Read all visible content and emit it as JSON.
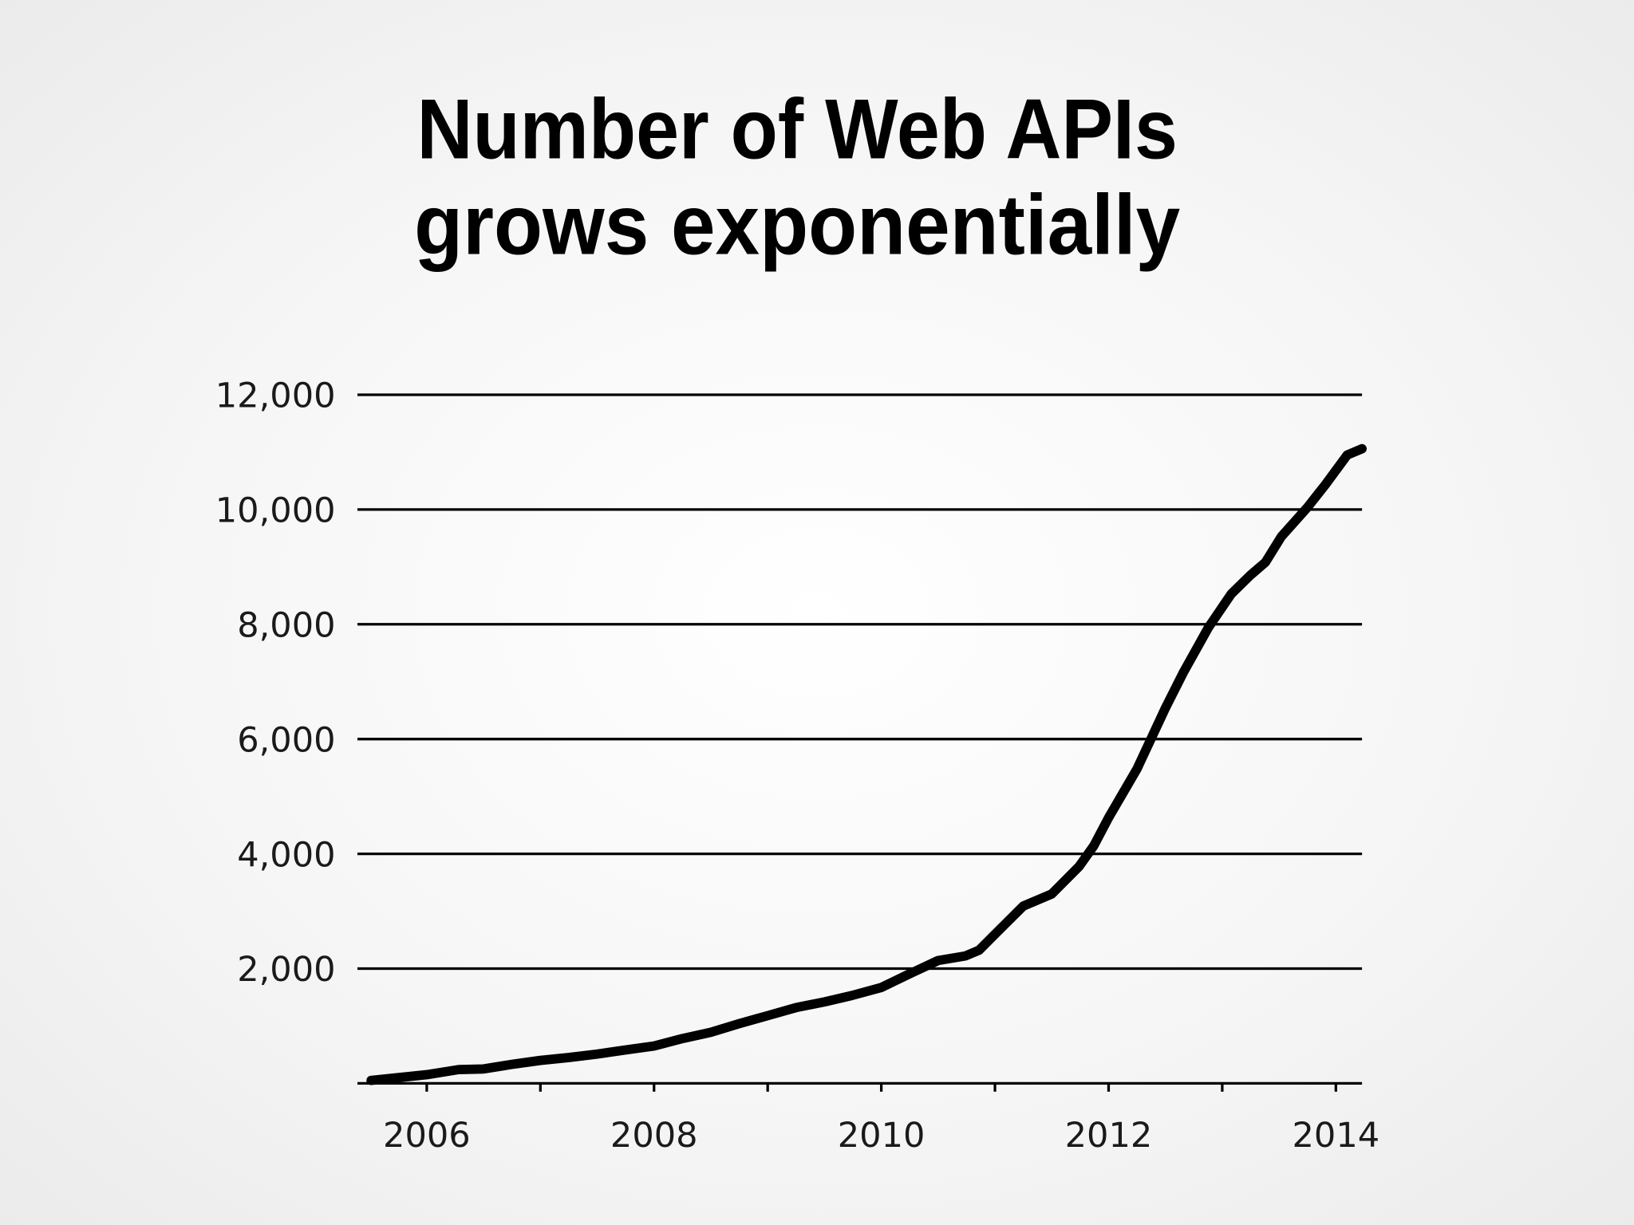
{
  "chart_data": {
    "type": "line",
    "title": [
      "Number of Web APIs",
      "grows exponentially"
    ],
    "x": [
      2005.51,
      2006.0,
      2006.28,
      2006.5,
      2006.75,
      2007.0,
      2007.25,
      2007.5,
      2007.74,
      2008.0,
      2008.25,
      2008.5,
      2008.75,
      2009.0,
      2009.25,
      2009.5,
      2009.74,
      2010.0,
      2010.25,
      2010.5,
      2010.74,
      2010.86,
      2011.0,
      2011.25,
      2011.5,
      2011.74,
      2011.87,
      2012.0,
      2012.25,
      2012.5,
      2012.66,
      2012.88,
      2013.08,
      2013.25,
      2013.38,
      2013.52,
      2013.75,
      2013.91,
      2014.1,
      2014.23
    ],
    "values": [
      50,
      150,
      240,
      250,
      330,
      400,
      450,
      510,
      580,
      650,
      780,
      890,
      1040,
      1180,
      1320,
      1420,
      1530,
      1670,
      1910,
      2140,
      2220,
      2320,
      2600,
      3090,
      3300,
      3780,
      4140,
      4630,
      5480,
      6540,
      7170,
      7950,
      8530,
      8860,
      9080,
      9530,
      10040,
      10440,
      10950,
      11060
    ],
    "color": "#000000",
    "xlim": [
      2005.39,
      2014.23
    ],
    "xticks": [
      2006,
      2008,
      2010,
      2012,
      2014
    ],
    "minor_xticks": [
      2007,
      2009,
      2011,
      2013
    ],
    "ylim": [
      0,
      12000
    ],
    "yticks": [
      {
        "value": 2000,
        "label": "2,000"
      },
      {
        "value": 4000,
        "label": "4,000"
      },
      {
        "value": 6000,
        "label": "6,000"
      },
      {
        "value": 8000,
        "label": "8,000"
      },
      {
        "value": 10000,
        "label": "10,000"
      },
      {
        "value": 12000,
        "label": "12,000"
      }
    ],
    "grid": true
  }
}
